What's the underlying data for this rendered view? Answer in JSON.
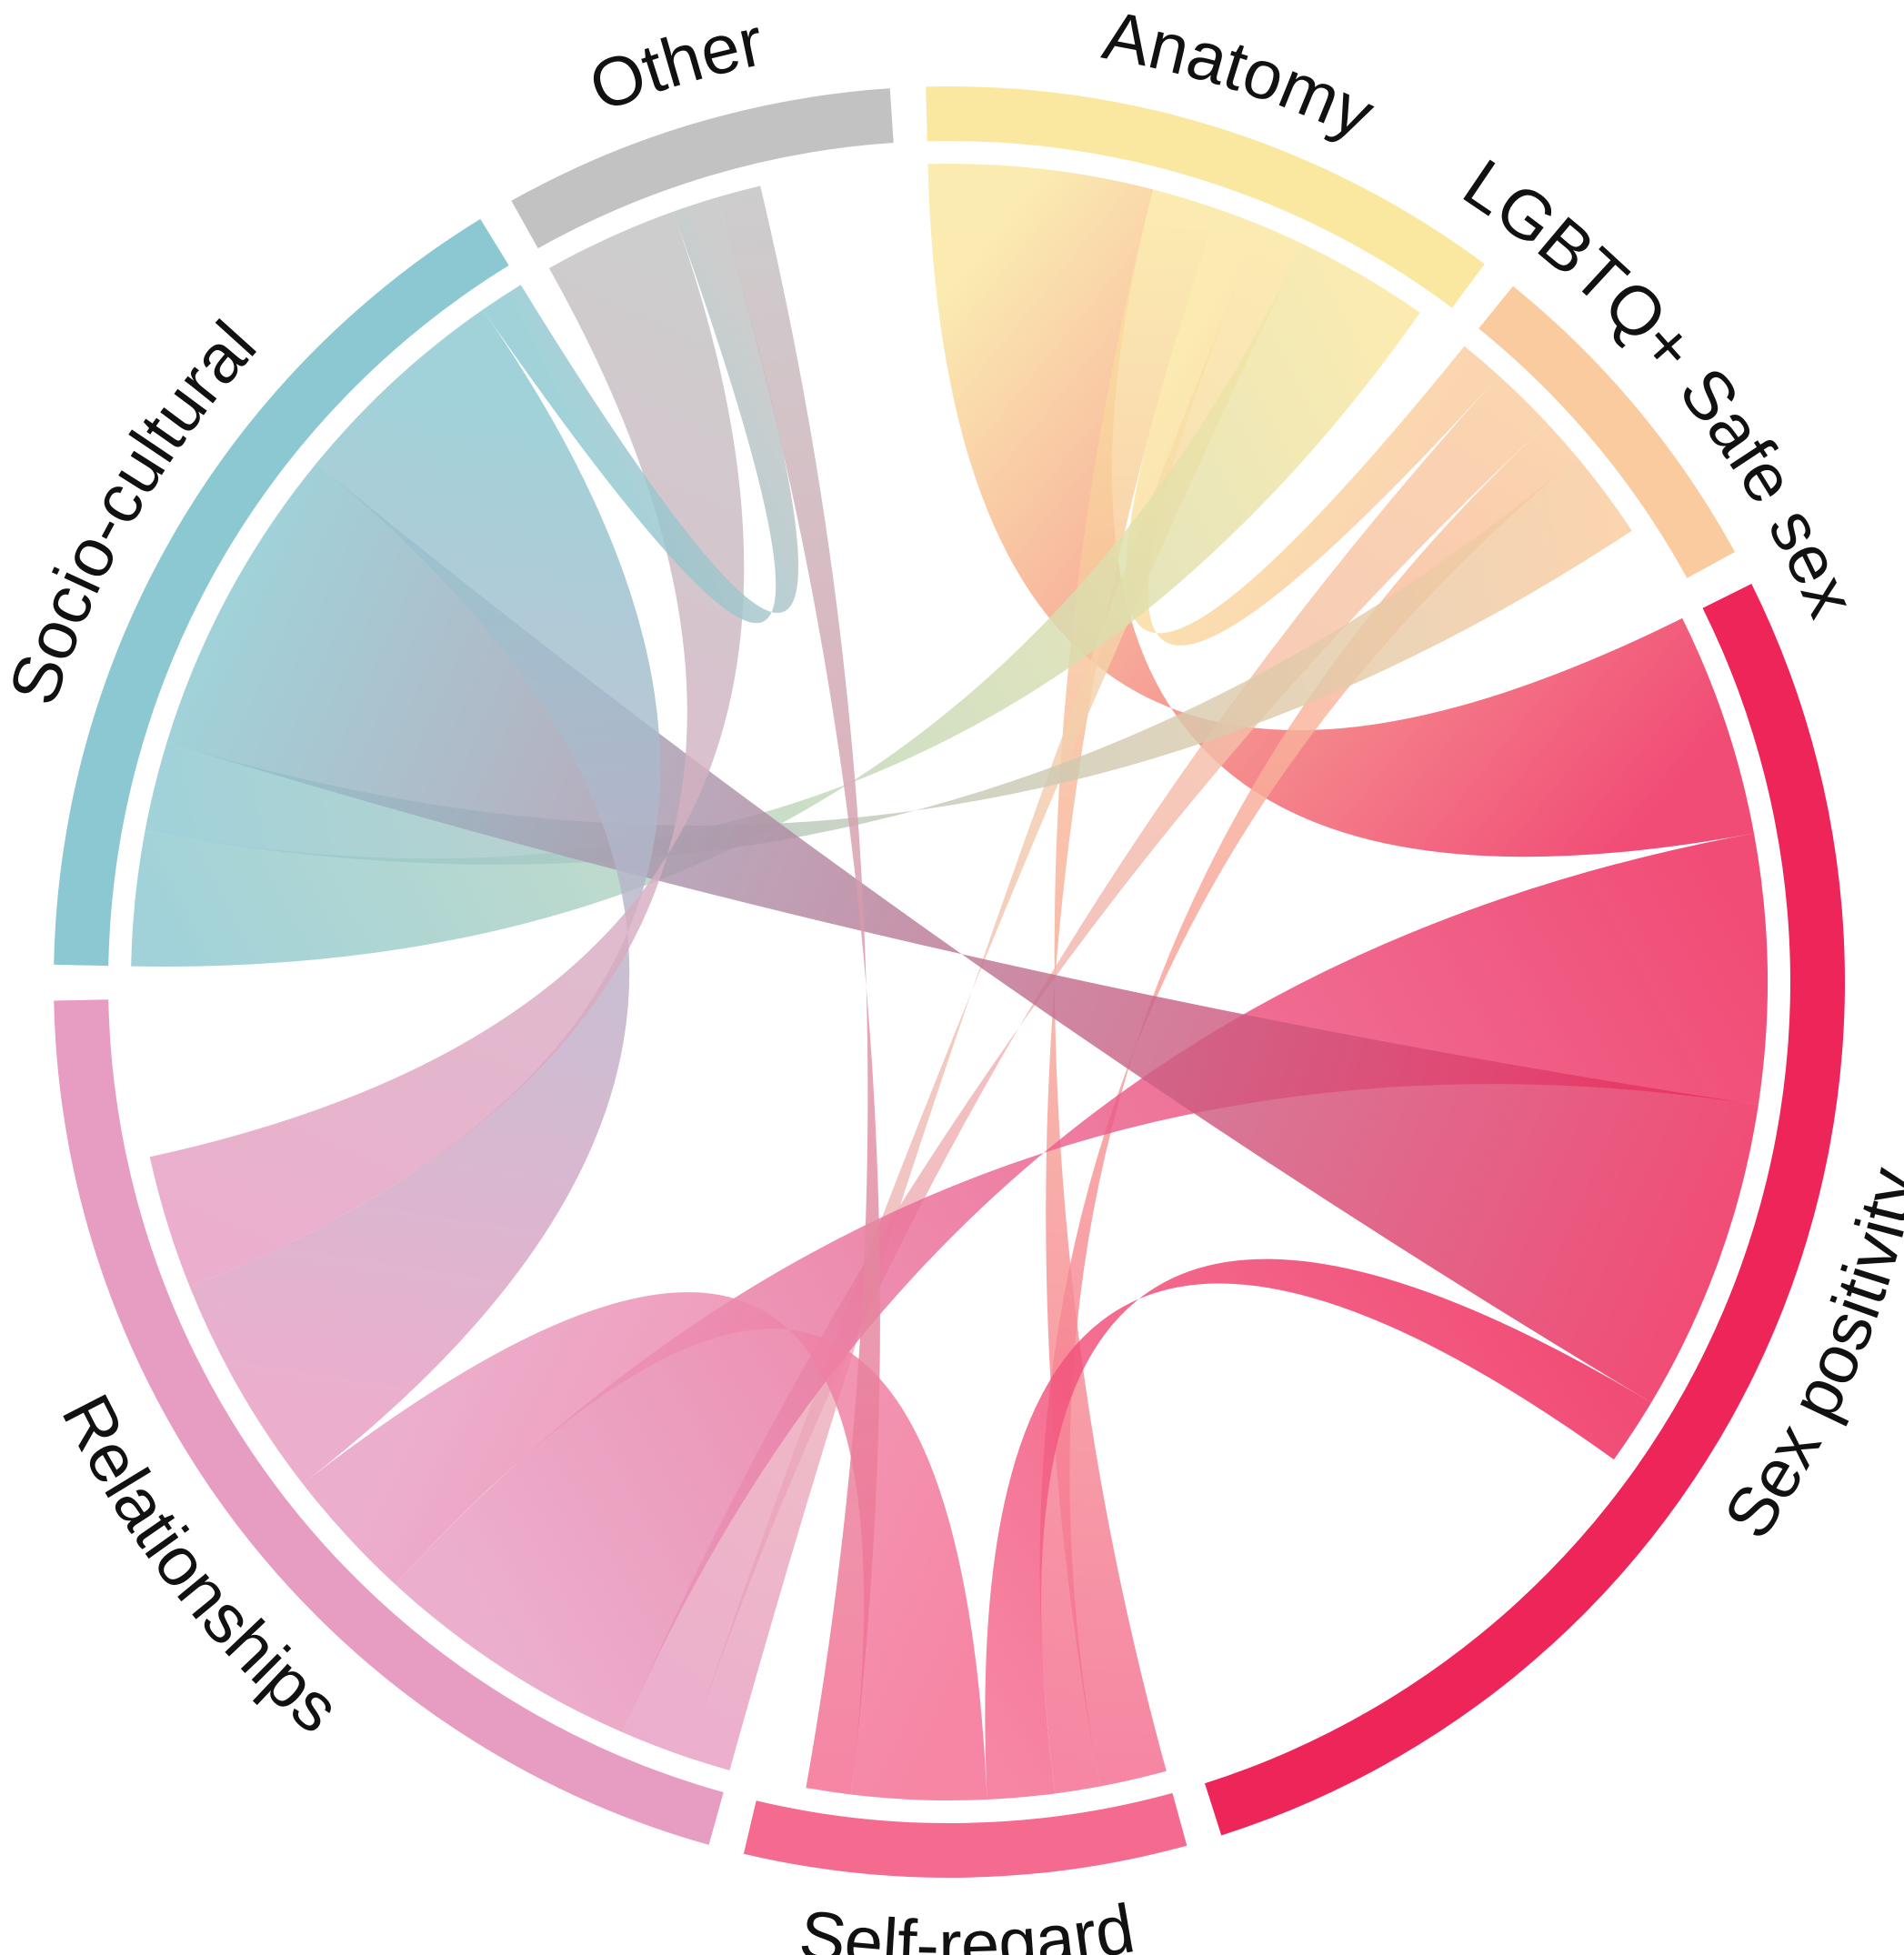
{
  "chart_data": {
    "type": "chord",
    "title": "",
    "categories": [
      "Anatomy",
      "LGBTQ+ Safe sex",
      "Sex positivity",
      "Self-regard",
      "Relationships",
      "Socio-cultural",
      "Other"
    ],
    "sectors": [
      {
        "name": "Anatomy",
        "color": "#FAE7A0",
        "total": 12
      },
      {
        "name": "LGBTQ+ Safe sex",
        "color": "#FACB9E",
        "total": 7
      },
      {
        "name": "Sex positivity",
        "color": "#EE2558",
        "total": 31
      },
      {
        "name": "Self-regard",
        "color": "#F46B8F",
        "total": 9
      },
      {
        "name": "Relationships",
        "color": "#E79DC2",
        "total": 23
      },
      {
        "name": "Socio-cultural",
        "color": "#8CC8D1",
        "total": 18
      },
      {
        "name": "Other",
        "color": "#C2C2C2",
        "total": 8
      }
    ],
    "links": [
      {
        "source": "Anatomy",
        "target": "Sex positivity",
        "value": 5
      },
      {
        "source": "Anatomy",
        "target": "Self-regard",
        "value": 1.5
      },
      {
        "source": "Anatomy",
        "target": "LGBTQ+ Safe sex",
        "value": 1
      },
      {
        "source": "Anatomy",
        "target": "Relationships",
        "value": 1
      },
      {
        "source": "Anatomy",
        "target": "Socio-cultural",
        "value": 3
      },
      {
        "source": "LGBTQ+ Safe sex",
        "target": "Relationships",
        "value": 1.5
      },
      {
        "source": "LGBTQ+ Safe sex",
        "target": "Self-regard",
        "value": 1
      },
      {
        "source": "LGBTQ+ Safe sex",
        "target": "Socio-cultural",
        "value": 2
      },
      {
        "source": "Sex positivity",
        "target": "Relationships",
        "value": 6
      },
      {
        "source": "Sex positivity",
        "target": "Socio-cultural",
        "value": 7
      },
      {
        "source": "Sex positivity",
        "target": "Self-regard",
        "value": 1.5
      },
      {
        "source": "Self-regard",
        "target": "Relationships",
        "value": 3
      },
      {
        "source": "Relationships",
        "target": "Socio-cultural",
        "value": 5
      },
      {
        "source": "Relationships",
        "target": "Other",
        "value": 3
      },
      {
        "source": "Socio-cultural",
        "target": "Other",
        "value": 1
      },
      {
        "source": "Other",
        "target": "Self-regard",
        "value": 1
      }
    ]
  }
}
